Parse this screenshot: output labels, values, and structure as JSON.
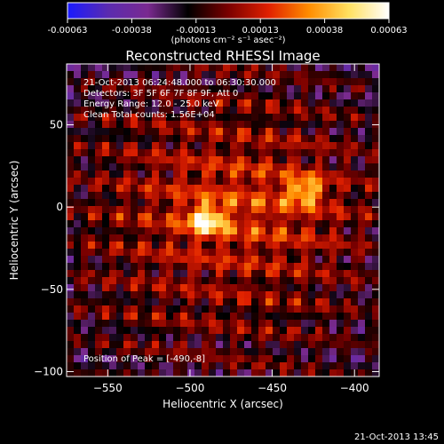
{
  "colorbar": {
    "ticks": [
      "-0.00063",
      "-0.00038",
      "-0.00013",
      "0.00013",
      "0.00038",
      "0.00063"
    ],
    "unit_label": "(photons cm⁻² s⁻¹ asec⁻²)",
    "colors": [
      "#1a1aff",
      "#5a2bb0",
      "#7a2a90",
      "#000000",
      "#7a0000",
      "#e02000",
      "#ff8c00",
      "#ffe060",
      "#ffffff"
    ]
  },
  "chart_data": {
    "type": "heatmap",
    "title": "Reconstructed RHESSI Image",
    "xlabel": "Heliocentric X (arcsec)",
    "ylabel": "Heliocentric Y (arcsec)",
    "xlim": [
      -575,
      -385
    ],
    "ylim": [
      -103,
      87
    ],
    "x_ticks": [
      {
        "value": -550,
        "label": "−550"
      },
      {
        "value": -500,
        "label": "−500"
      },
      {
        "value": -450,
        "label": "−450"
      },
      {
        "value": -400,
        "label": "−400"
      }
    ],
    "y_ticks": [
      {
        "value": 50,
        "label": "50"
      },
      {
        "value": 0,
        "label": "0"
      },
      {
        "value": -50,
        "label": "−50"
      },
      {
        "value": -100,
        "label": "−100"
      }
    ],
    "sources": [
      {
        "x": -490,
        "y": -8,
        "peak": 1.0
      },
      {
        "x": -430,
        "y": 10,
        "peak": 0.82
      }
    ],
    "info_lines": [
      "21-Oct-2013 06:24:48.000 to 06:30:30.000",
      "Detectors: 3F 5F 6F 7F 8F 9F, Att 0",
      "Energy Range: 12.0 - 25.0 keV",
      "Clean    Total counts: 1.56E+04"
    ],
    "peak_label": "Position of Peak = [-490,-8]"
  },
  "timestamp": "21-Oct-2013 13:45"
}
